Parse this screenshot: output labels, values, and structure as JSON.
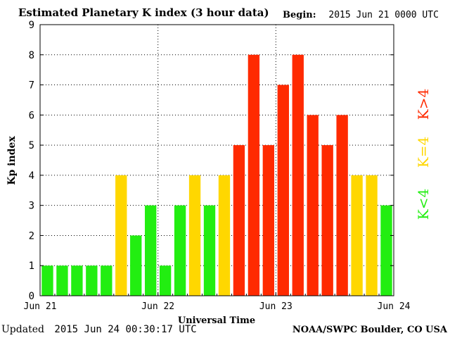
{
  "header": {
    "title": "Estimated Planetary K index (3 hour data)",
    "begin_label": "Begin:",
    "begin_value": "2015 Jun 21 0000 UTC"
  },
  "footer": {
    "updated_label": "Updated",
    "updated_value": "2015 Jun 24 00:30:17 UTC",
    "credit": "NOAA/SWPC Boulder, CO USA"
  },
  "legend": {
    "low": "K<4",
    "mid": "K=4",
    "high": "K>4"
  },
  "colors": {
    "low": "#22ee11",
    "mid": "#ffd700",
    "high": "#ff2a00"
  },
  "chart_data": {
    "type": "bar",
    "xlabel": "Universal Time",
    "ylabel": "Kp index",
    "ylim": [
      0,
      9
    ],
    "grid": true,
    "x_ticks": [
      "Jun 21",
      "Jun 22",
      "Jun 23",
      "Jun 24"
    ],
    "y_ticks": [
      "0",
      "1",
      "2",
      "3",
      "4",
      "5",
      "6",
      "7",
      "8",
      "9"
    ],
    "values": [
      1,
      1,
      1,
      1,
      1,
      4,
      2,
      3,
      1,
      3,
      4,
      3,
      4,
      5,
      8,
      5,
      7,
      8,
      6,
      5,
      6,
      4,
      4,
      3
    ]
  }
}
